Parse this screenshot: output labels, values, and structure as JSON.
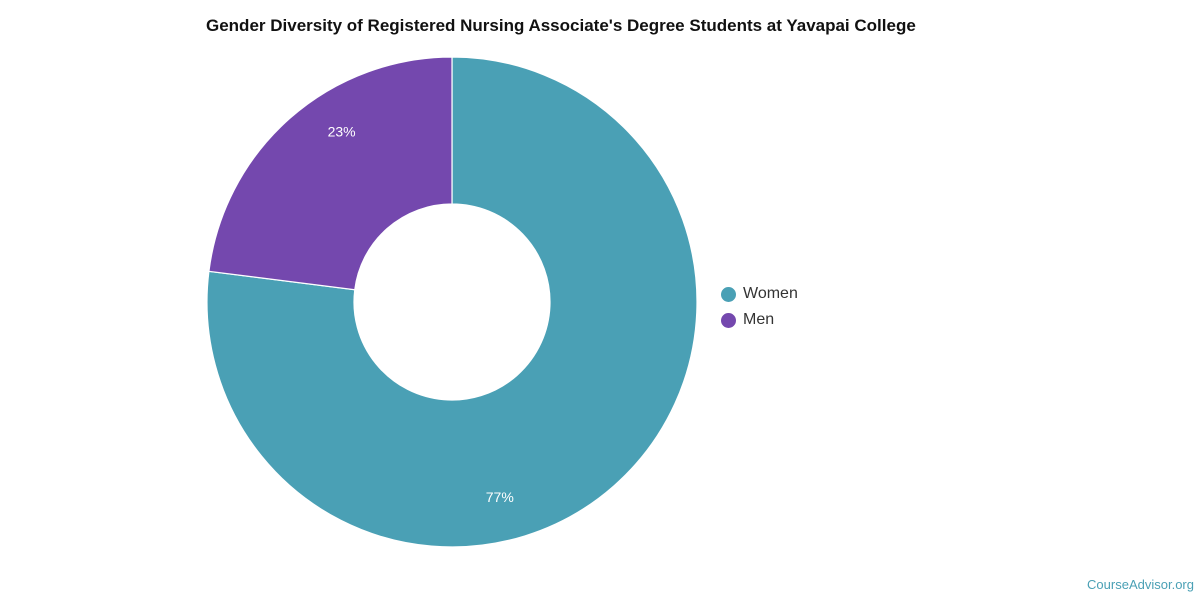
{
  "chart_data": {
    "type": "pie",
    "variant": "donut",
    "title": "Gender Diversity of Registered Nursing Associate's Degree Students at Yavapai College",
    "categories": [
      "Women",
      "Men"
    ],
    "values": [
      77,
      23
    ],
    "data_labels": [
      "77%",
      "23%"
    ],
    "colors": [
      "#4aa0b5",
      "#7448ae"
    ],
    "legend_position": "right"
  },
  "watermark": "CourseAdvisor.org"
}
